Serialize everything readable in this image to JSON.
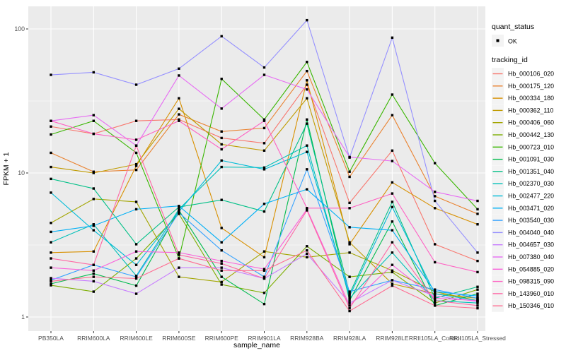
{
  "legend": {
    "quant_status_title": "quant_status",
    "ok_label": "OK",
    "tracking_id_title": "tracking_id"
  },
  "chart_data": {
    "type": "line",
    "title": "",
    "xlabel": "sample_name",
    "ylabel": "FPKM + 1",
    "y_scale": "log10",
    "ylim": [
      0.8,
      145
    ],
    "y_major_ticks": [
      1,
      10,
      100
    ],
    "y_minor_ticks": [
      3.162,
      31.62
    ],
    "grid": true,
    "legend_position": "right",
    "panel_background": "#EBEBEB",
    "gridline_color": "#FFFFFF",
    "point_color": "#000000",
    "categories": [
      "PB350LA",
      "RRIM600LA",
      "RRIM600LE",
      "RRIM600SE",
      "RRIM600PE",
      "RRIM901LA",
      "RRIM928BA",
      "RRIM928LA",
      "RRIM928LE",
      "RRII105LA_Control",
      "RRII105LA_Stressed"
    ],
    "series": [
      {
        "name": "Hb_000106_020",
        "color": "#F8766D",
        "values": [
          21,
          18.7,
          23,
          23.5,
          17.5,
          16.1,
          41,
          6.2,
          14.3,
          3.2,
          2.45
        ]
      },
      {
        "name": "Hb_000175_120",
        "color": "#EA8331",
        "values": [
          13.8,
          10.2,
          10.5,
          25.5,
          19.4,
          20.5,
          51,
          9.4,
          25.2,
          6.9,
          5.2
        ]
      },
      {
        "name": "Hb_000334_180",
        "color": "#D89000",
        "values": [
          2.8,
          2.85,
          11.2,
          33,
          4.15,
          2.6,
          44,
          3.2,
          8.6,
          5.7,
          4.4
        ]
      },
      {
        "name": "Hb_000362_110",
        "color": "#C09B00",
        "values": [
          11,
          10,
          11.5,
          27.9,
          15.8,
          14.3,
          33,
          3.3,
          1.7,
          1.45,
          1.35
        ]
      },
      {
        "name": "Hb_000406_060",
        "color": "#A3A500",
        "values": [
          4.5,
          6.6,
          6.3,
          1.9,
          1.75,
          2.85,
          2.6,
          2.8,
          2.1,
          1.5,
          1.3
        ]
      },
      {
        "name": "Hb_000442_130",
        "color": "#7CAE00",
        "values": [
          1.66,
          1.5,
          2.55,
          5.2,
          1.68,
          1.47,
          3.1,
          1.9,
          2.05,
          1.25,
          1.55
        ]
      },
      {
        "name": "Hb_000723_010",
        "color": "#39B600",
        "values": [
          18.5,
          23,
          13.8,
          2.55,
          45,
          23.5,
          59,
          10.2,
          35,
          11.7,
          5.6
        ]
      },
      {
        "name": "Hb_001091_030",
        "color": "#00BB4E",
        "values": [
          1.7,
          2.0,
          1.65,
          5.5,
          1.9,
          1.23,
          23.5,
          1.3,
          4.6,
          1.2,
          1.45
        ]
      },
      {
        "name": "Hb_001351_040",
        "color": "#00C087",
        "values": [
          9.1,
          7.8,
          3.2,
          5.8,
          6.5,
          5.4,
          22,
          1.45,
          6.3,
          1.35,
          1.62
        ]
      },
      {
        "name": "Hb_002370_030",
        "color": "#00C0B8",
        "values": [
          3.3,
          4.4,
          1.93,
          5.6,
          11,
          10.9,
          15.5,
          1.35,
          2.8,
          1.3,
          1.25
        ]
      },
      {
        "name": "Hb_002477_220",
        "color": "#00BCD8",
        "values": [
          7.3,
          4.0,
          2.3,
          5.4,
          12.2,
          10.6,
          14,
          1.4,
          5.8,
          1.45,
          1.3
        ]
      },
      {
        "name": "Hb_003471_020",
        "color": "#00B0F6",
        "values": [
          3.9,
          4.3,
          5.6,
          5.9,
          3.3,
          6.1,
          7.7,
          4.2,
          4.0,
          1.5,
          1.4
        ]
      },
      {
        "name": "Hb_003540_030",
        "color": "#35A2FF",
        "values": [
          1.8,
          2.3,
          1.9,
          5.3,
          2.9,
          1.9,
          10.6,
          1.5,
          1.8,
          1.55,
          1.35
        ]
      },
      {
        "name": "Hb_004040_040",
        "color": "#9590FF",
        "values": [
          48,
          50,
          41,
          53,
          89,
          54,
          115,
          12.8,
          87,
          6.4,
          2.8
        ]
      },
      {
        "name": "Hb_004657_030",
        "color": "#C77CFF",
        "values": [
          1.86,
          1.77,
          1.45,
          2.2,
          2.2,
          1.85,
          2.75,
          1.25,
          1.8,
          1.4,
          1.28
        ]
      },
      {
        "name": "Hb_007380_040",
        "color": "#E76BF3",
        "values": [
          23,
          25.2,
          15.5,
          47.5,
          28,
          48,
          38,
          12.9,
          12.1,
          7.4,
          6.4
        ]
      },
      {
        "name": "Hb_054885_020",
        "color": "#FA62DB",
        "values": [
          2.2,
          2.1,
          2.85,
          2.8,
          2.45,
          2.15,
          5.6,
          1.2,
          2.3,
          1.35,
          1.3
        ]
      },
      {
        "name": "Hb_098315_090",
        "color": "#FF61C3",
        "values": [
          23,
          18.7,
          17,
          23,
          14.6,
          23,
          5.7,
          5.7,
          7.2,
          2.4,
          2.05
        ]
      },
      {
        "name": "Hb_143960_010",
        "color": "#FF67A4",
        "values": [
          2.55,
          2.3,
          15.5,
          2.7,
          2.35,
          1.85,
          5.5,
          1.15,
          3.3,
          1.3,
          1.2
        ]
      },
      {
        "name": "Hb_150346_010",
        "color": "#FF6C92",
        "values": [
          1.77,
          1.9,
          1.85,
          2.55,
          2.1,
          2.1,
          2.9,
          1.1,
          1.65,
          1.2,
          1.15
        ]
      }
    ]
  }
}
